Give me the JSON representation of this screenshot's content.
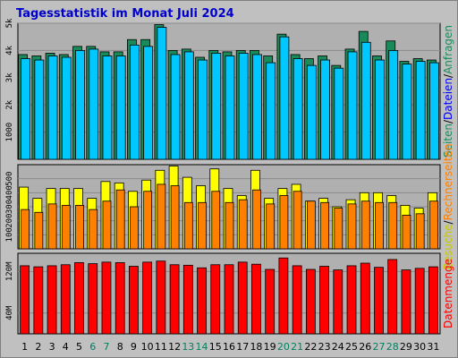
{
  "title": "Tagesstatistik im Monat Juli 2024",
  "colors": {
    "background": "#c0c0c0",
    "plot_bg": "#b0b0b0",
    "grid": "#8a8a8a",
    "title": "#0000cc",
    "anfragen": "#1a8a5a",
    "dateien": "#00c8ff",
    "rechnerseiten": "#ff8000",
    "besuche": "#ffff00",
    "datenmenge": "#ff0000",
    "weekend_label": "#008060",
    "weekday_label": "#000000"
  },
  "chart_data": [
    {
      "type": "bar",
      "panel": "requests",
      "x": [
        1,
        2,
        3,
        4,
        5,
        6,
        7,
        8,
        9,
        10,
        11,
        12,
        13,
        14,
        15,
        16,
        17,
        18,
        19,
        20,
        21,
        22,
        23,
        24,
        25,
        26,
        27,
        28,
        29,
        30,
        31
      ],
      "ylim": [
        0,
        5000
      ],
      "yticks": [
        "1000",
        "2k",
        "3k",
        "4k",
        "5k"
      ],
      "ytick_values": [
        1000,
        2000,
        3000,
        4000,
        5000
      ],
      "right_label_parts": [
        {
          "text": "Seiten",
          "color": "#1a8a5a"
        },
        {
          "text": "/",
          "color": "#000000"
        },
        {
          "text": "Dateien",
          "color": "#0000ff"
        },
        {
          "text": "/",
          "color": "#000000"
        },
        {
          "text": "Anfragen",
          "color": "#1a8a5a"
        }
      ],
      "series": [
        {
          "name": "Anfragen",
          "values": [
            3850,
            3800,
            3900,
            3850,
            4150,
            4150,
            3950,
            3950,
            4400,
            4400,
            4950,
            4000,
            4050,
            3750,
            4000,
            3950,
            4000,
            4000,
            3800,
            4600,
            3850,
            3700,
            3800,
            3450,
            4050,
            4700,
            3800,
            4350,
            3600,
            3700,
            3650
          ]
        },
        {
          "name": "Dateien",
          "values": [
            3700,
            3650,
            3800,
            3750,
            4000,
            4050,
            3800,
            3800,
            4200,
            4150,
            4850,
            3850,
            3950,
            3650,
            3900,
            3800,
            3900,
            3850,
            3550,
            4500,
            3700,
            3450,
            3650,
            3350,
            3950,
            4300,
            3650,
            4000,
            3500,
            3600,
            3550
          ]
        }
      ]
    },
    {
      "type": "bar",
      "panel": "visits",
      "x": [
        1,
        2,
        3,
        4,
        5,
        6,
        7,
        8,
        9,
        10,
        11,
        12,
        13,
        14,
        15,
        16,
        17,
        18,
        19,
        20,
        21,
        22,
        23,
        24,
        25,
        26,
        27,
        28,
        29,
        30,
        31
      ],
      "ylim": [
        0,
        600
      ],
      "yticks": [
        "100",
        "200",
        "300",
        "400",
        "500"
      ],
      "ytick_values": [
        100,
        200,
        300,
        400,
        500
      ],
      "right_label_parts": [
        {
          "text": "Besuche",
          "color": "#c8c800"
        },
        {
          "text": "/",
          "color": "#000000"
        },
        {
          "text": "Rechnerseiten",
          "color": "#ff8000"
        }
      ],
      "series": [
        {
          "name": "Besuche",
          "values": [
            440,
            360,
            430,
            430,
            430,
            360,
            480,
            470,
            410,
            490,
            560,
            590,
            510,
            450,
            570,
            430,
            380,
            560,
            360,
            430,
            460,
            340,
            360,
            300,
            350,
            400,
            400,
            380,
            310,
            290,
            400
          ]
        },
        {
          "name": "Rechnerseiten",
          "values": [
            280,
            260,
            320,
            310,
            310,
            280,
            340,
            420,
            300,
            410,
            460,
            450,
            330,
            330,
            410,
            330,
            350,
            420,
            320,
            380,
            410,
            340,
            330,
            290,
            320,
            340,
            330,
            330,
            240,
            250,
            340
          ]
        }
      ]
    },
    {
      "type": "bar",
      "panel": "volume",
      "x": [
        1,
        2,
        3,
        4,
        5,
        6,
        7,
        8,
        9,
        10,
        11,
        12,
        13,
        14,
        15,
        16,
        17,
        18,
        19,
        20,
        21,
        22,
        23,
        24,
        25,
        26,
        27,
        28,
        29,
        30,
        31
      ],
      "ylim": [
        0,
        155
      ],
      "yticks": [
        "40M",
        "120M"
      ],
      "ytick_values": [
        40,
        120
      ],
      "right_label_parts": [
        {
          "text": "Datenmenge",
          "color": "#ff0000"
        }
      ],
      "series": [
        {
          "name": "Datenmenge",
          "values": [
            131,
            129,
            131,
            133,
            137,
            135,
            138,
            137,
            130,
            138,
            140,
            133,
            132,
            127,
            133,
            133,
            138,
            134,
            124,
            146,
            131,
            124,
            130,
            123,
            131,
            136,
            128,
            143,
            123,
            126,
            129
          ]
        }
      ]
    }
  ],
  "x_labels": [
    "1",
    "2",
    "3",
    "4",
    "5",
    "6",
    "7",
    "8",
    "9",
    "10",
    "11",
    "12",
    "13",
    "14",
    "15",
    "16",
    "17",
    "18",
    "19",
    "20",
    "21",
    "22",
    "23",
    "24",
    "25",
    "26",
    "27",
    "28",
    "29",
    "30",
    "31"
  ],
  "weekend_days": [
    6,
    7,
    13,
    14,
    20,
    21,
    27,
    28
  ]
}
